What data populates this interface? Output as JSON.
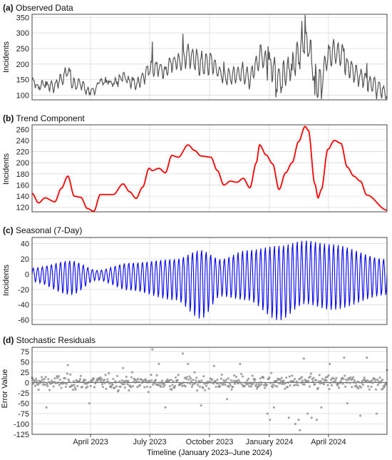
{
  "figure": {
    "xlabel": "Timeline (January 2023–June 2024)",
    "x_range": [
      "2023-01-01",
      "2024-06-30"
    ],
    "x_ticks": [
      {
        "date": "2023-04-01",
        "label": "April 2023"
      },
      {
        "date": "2023-07-01",
        "label": "July 2023"
      },
      {
        "date": "2023-10-01",
        "label": "October 2023"
      },
      {
        "date": "2024-01-01",
        "label": "January 2024"
      },
      {
        "date": "2024-04-01",
        "label": "April 2024"
      }
    ],
    "grid": true
  },
  "chart_data": [
    {
      "type": "line",
      "panel_letter": "(a)",
      "title": "Observed Data",
      "ylabel": "Incidents",
      "ylim": [
        85,
        360
      ],
      "yticks": [
        100,
        150,
        200,
        250,
        300,
        350
      ],
      "color": "#555555",
      "x_start": "2023-01-01",
      "x_step_days": 1,
      "trend": [
        [
          0,
          145
        ],
        [
          10,
          128
        ],
        [
          20,
          137
        ],
        [
          35,
          130
        ],
        [
          45,
          154
        ],
        [
          55,
          176
        ],
        [
          65,
          140
        ],
        [
          75,
          138
        ],
        [
          85,
          118
        ],
        [
          95,
          113
        ],
        [
          105,
          143
        ],
        [
          125,
          143
        ],
        [
          140,
          162
        ],
        [
          150,
          148
        ],
        [
          160,
          136
        ],
        [
          170,
          156
        ],
        [
          180,
          190
        ],
        [
          185,
          186
        ],
        [
          195,
          190
        ],
        [
          205,
          182
        ],
        [
          215,
          213
        ],
        [
          225,
          210
        ],
        [
          240,
          232
        ],
        [
          250,
          222
        ],
        [
          260,
          212
        ],
        [
          275,
          210
        ],
        [
          285,
          186
        ],
        [
          295,
          160
        ],
        [
          305,
          167
        ],
        [
          315,
          165
        ],
        [
          325,
          172
        ],
        [
          335,
          155
        ],
        [
          345,
          200
        ],
        [
          350,
          232
        ],
        [
          360,
          214
        ],
        [
          370,
          198
        ],
        [
          380,
          152
        ],
        [
          390,
          182
        ],
        [
          400,
          200
        ],
        [
          410,
          238
        ],
        [
          420,
          265
        ],
        [
          425,
          258
        ],
        [
          435,
          162
        ],
        [
          440,
          137
        ],
        [
          445,
          152
        ],
        [
          455,
          224
        ],
        [
          465,
          240
        ],
        [
          475,
          235
        ],
        [
          485,
          192
        ],
        [
          495,
          176
        ],
        [
          505,
          167
        ],
        [
          515,
          142
        ],
        [
          546,
          115
        ]
      ],
      "seasonal_amp": [
        [
          0,
          12
        ],
        [
          60,
          22
        ],
        [
          100,
          8
        ],
        [
          150,
          20
        ],
        [
          220,
          40
        ],
        [
          260,
          62
        ],
        [
          290,
          32
        ],
        [
          330,
          42
        ],
        [
          380,
          58
        ],
        [
          420,
          47
        ],
        [
          460,
          50
        ],
        [
          546,
          38
        ]
      ],
      "spikes": [
        [
          185,
          60
        ],
        [
          232,
          45
        ],
        [
          295,
          30
        ],
        [
          363,
          80
        ],
        [
          375,
          -60
        ],
        [
          385,
          -40
        ],
        [
          400,
          -60
        ],
        [
          415,
          40
        ],
        [
          420,
          95
        ],
        [
          435,
          -90
        ],
        [
          445,
          -40
        ],
        [
          480,
          40
        ],
        [
          515,
          60
        ],
        [
          546,
          -25
        ]
      ]
    },
    {
      "type": "line",
      "panel_letter": "(b)",
      "title": "Trend Component",
      "ylabel": "Incidents",
      "ylim": [
        112,
        268
      ],
      "yticks": [
        120,
        140,
        160,
        180,
        200,
        220,
        240,
        260
      ],
      "color": "#ff0000",
      "x_start": "2023-01-01",
      "x_step_days": 1,
      "points": [
        [
          0,
          145
        ],
        [
          10,
          128
        ],
        [
          20,
          137
        ],
        [
          35,
          130
        ],
        [
          45,
          154
        ],
        [
          55,
          176
        ],
        [
          65,
          140
        ],
        [
          75,
          138
        ],
        [
          85,
          118
        ],
        [
          95,
          113
        ],
        [
          105,
          143
        ],
        [
          125,
          143
        ],
        [
          140,
          162
        ],
        [
          150,
          148
        ],
        [
          160,
          136
        ],
        [
          170,
          156
        ],
        [
          180,
          190
        ],
        [
          185,
          186
        ],
        [
          195,
          190
        ],
        [
          205,
          182
        ],
        [
          215,
          213
        ],
        [
          225,
          210
        ],
        [
          240,
          232
        ],
        [
          250,
          222
        ],
        [
          260,
          212
        ],
        [
          275,
          210
        ],
        [
          285,
          186
        ],
        [
          295,
          160
        ],
        [
          305,
          167
        ],
        [
          315,
          165
        ],
        [
          325,
          172
        ],
        [
          335,
          155
        ],
        [
          345,
          200
        ],
        [
          350,
          232
        ],
        [
          360,
          214
        ],
        [
          370,
          198
        ],
        [
          380,
          152
        ],
        [
          390,
          182
        ],
        [
          400,
          200
        ],
        [
          410,
          238
        ],
        [
          420,
          265
        ],
        [
          425,
          258
        ],
        [
          435,
          162
        ],
        [
          440,
          137
        ],
        [
          445,
          152
        ],
        [
          455,
          224
        ],
        [
          465,
          240
        ],
        [
          475,
          235
        ],
        [
          485,
          192
        ],
        [
          495,
          176
        ],
        [
          505,
          167
        ],
        [
          515,
          142
        ],
        [
          546,
          115
        ]
      ]
    },
    {
      "type": "line",
      "panel_letter": "(c)",
      "title": "Seasonal (7-Day)",
      "ylabel": "Incidents",
      "ylim": [
        -66,
        48
      ],
      "yticks": [
        -60,
        -40,
        -20,
        0,
        20,
        40
      ],
      "color": "#0000ee",
      "x_start": "2023-01-01",
      "x_step_days": 1,
      "period_days": 7,
      "upper_envelope": [
        [
          0,
          8
        ],
        [
          60,
          18
        ],
        [
          100,
          5
        ],
        [
          150,
          15
        ],
        [
          220,
          20
        ],
        [
          260,
          32
        ],
        [
          290,
          20
        ],
        [
          330,
          32
        ],
        [
          380,
          38
        ],
        [
          420,
          45
        ],
        [
          460,
          40
        ],
        [
          546,
          20
        ]
      ],
      "lower_envelope": [
        [
          0,
          -10
        ],
        [
          60,
          -28
        ],
        [
          100,
          -8
        ],
        [
          150,
          -22
        ],
        [
          220,
          -35
        ],
        [
          260,
          -60
        ],
        [
          290,
          -30
        ],
        [
          330,
          -35
        ],
        [
          380,
          -62
        ],
        [
          420,
          -40
        ],
        [
          460,
          -48
        ],
        [
          546,
          -28
        ]
      ]
    },
    {
      "type": "scatter",
      "panel_letter": "(d)",
      "title": "Stochastic Residuals",
      "ylabel": "Error Value",
      "ylim": [
        -125,
        85
      ],
      "yticks": [
        -125,
        -100,
        -75,
        -50,
        -25,
        0,
        25,
        50,
        75
      ],
      "color": "#888888",
      "x_start": "2023-01-01",
      "noise_sd": 14,
      "outliers": [
        [
          22,
          -60
        ],
        [
          55,
          42
        ],
        [
          88,
          -50
        ],
        [
          140,
          35
        ],
        [
          185,
          80
        ],
        [
          195,
          45
        ],
        [
          205,
          -60
        ],
        [
          232,
          70
        ],
        [
          240,
          45
        ],
        [
          260,
          -55
        ],
        [
          280,
          40
        ],
        [
          300,
          -40
        ],
        [
          320,
          45
        ],
        [
          362,
          -75
        ],
        [
          366,
          -90
        ],
        [
          372,
          -60
        ],
        [
          395,
          -85
        ],
        [
          405,
          -100
        ],
        [
          410,
          -90
        ],
        [
          412,
          -115
        ],
        [
          418,
          58
        ],
        [
          424,
          -75
        ],
        [
          430,
          -85
        ],
        [
          438,
          -90
        ],
        [
          445,
          -60
        ],
        [
          458,
          45
        ],
        [
          480,
          60
        ],
        [
          485,
          -50
        ],
        [
          505,
          -80
        ],
        [
          515,
          60
        ],
        [
          530,
          -75
        ],
        [
          546,
          30
        ]
      ]
    }
  ]
}
